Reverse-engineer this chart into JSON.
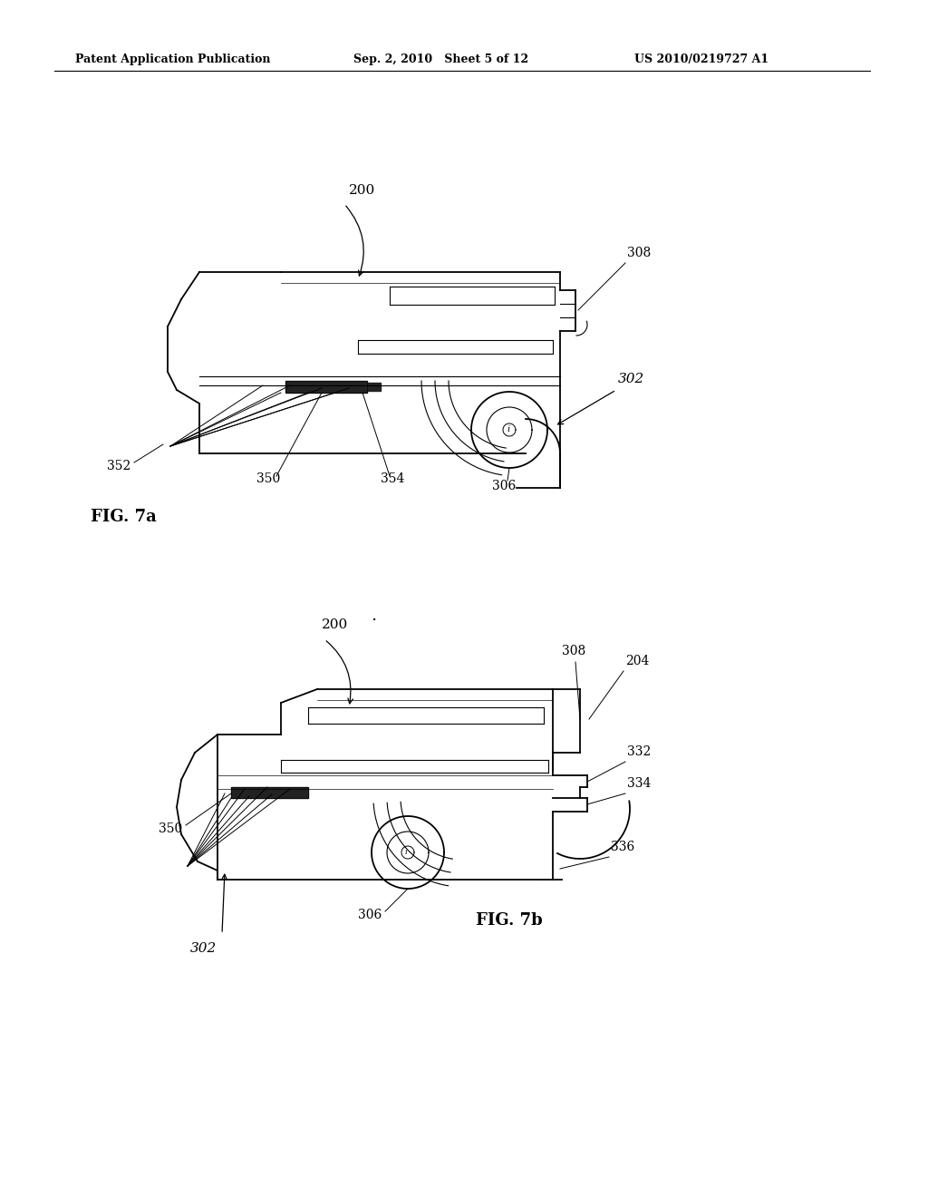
{
  "background_color": "#ffffff",
  "header_left": "Patent Application Publication",
  "header_center": "Sep. 2, 2010   Sheet 5 of 12",
  "header_right": "US 2010/0219727 A1",
  "fig7a_label": "FIG. 7a",
  "fig7b_label": "FIG. 7b"
}
